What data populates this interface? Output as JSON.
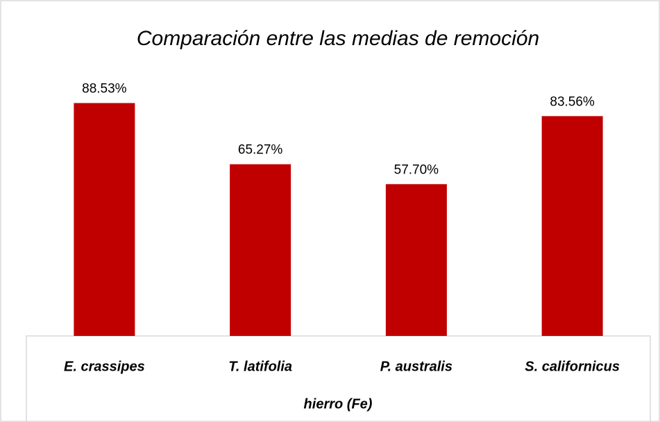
{
  "chart_data": {
    "type": "bar",
    "title": "Comparación entre las medias de remoción",
    "x_label": "hierro (Fe)",
    "categories": [
      "E. crassipes",
      "T. latifolia",
      "P. australis",
      "S. californicus"
    ],
    "values": [
      88.53,
      65.27,
      57.7,
      83.56
    ],
    "value_labels": [
      "88.53%",
      "65.27%",
      "57.70%",
      "83.56%"
    ],
    "color": "#c00000",
    "ylim": [
      0,
      100
    ]
  }
}
